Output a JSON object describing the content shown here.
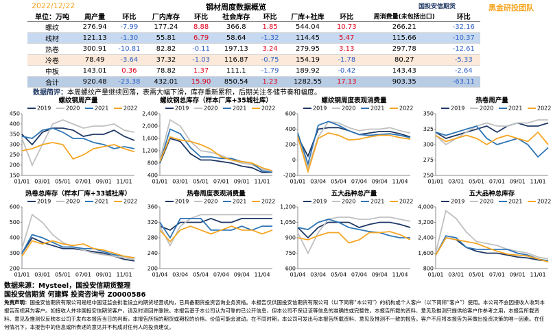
{
  "header": {
    "date": "2022/12/22",
    "title": "钢材周度数据概览",
    "logo": "国投安信期货",
    "team": "黑金研投团队"
  },
  "table": {
    "columns": [
      "单位：万吨",
      "周产量",
      "环比",
      "厂内库存",
      "环比",
      "社会库存",
      "环比",
      "厂库+社库",
      "环比",
      "周消费量(未包括出口)",
      "环比"
    ],
    "rows": [
      [
        "螺纹",
        "276.94",
        "-7.99",
        "177.24",
        "8.88",
        "366.8",
        "1.85",
        "544.04",
        "10.73",
        "266.21",
        "-32.16"
      ],
      [
        "线材",
        "121.13",
        "-1.30",
        "55.81",
        "6.79",
        "58.64",
        "-1.32",
        "114.45",
        "5.47",
        "115.66",
        "-10.37"
      ],
      [
        "热卷",
        "300.91",
        "-10.81",
        "82.82",
        "-0.11",
        "197.13",
        "3.24",
        "279.95",
        "3.13",
        "297.78",
        "-12.61"
      ],
      [
        "冷卷",
        "78.49",
        "-3.64",
        "37.32",
        "-1.03",
        "116.87",
        "-0.75",
        "154.19",
        "-1.78",
        "80.27",
        "-5.33"
      ],
      [
        "中板",
        "143.01",
        "0.36",
        "78.82",
        "1.37",
        "111.1",
        "-1.79",
        "189.92",
        "-0.42",
        "143.43",
        "-2.64"
      ],
      [
        "合计",
        "920.48",
        "-23.38",
        "432.01",
        "15.90",
        "850.54",
        "1.23",
        "1282.55",
        "17.13",
        "903.35",
        "-63.11"
      ]
    ],
    "row_colors": [
      "#ffffff",
      "#c6d9f0",
      "#ffffff",
      "#fde9d9",
      "#ffffff",
      "#b8cce4"
    ]
  },
  "comment": {
    "label": "数据简评：",
    "text": "本周螺纹产量继续回落，表需大幅下滑，库存重新累积，后期关注冬储节奏和幅度。"
  },
  "chart_data": [
    {
      "type": "line",
      "title": "螺纹钢周产量",
      "categories": [
        "01/01",
        null,
        "03/01",
        null,
        "05/01",
        null,
        "07/01",
        null,
        "09/01",
        null,
        "11/01",
        null
      ],
      "ylim": [
        150,
        450
      ],
      "yticks": [
        150,
        200,
        250,
        300,
        350,
        400,
        450
      ],
      "series": [
        {
          "name": "2019",
          "color": "#1f3864",
          "values": [
            350,
            300,
            360,
            380,
            380,
            370,
            340,
            350,
            350,
            370,
            340,
            320
          ]
        },
        {
          "name": "2020",
          "color": "#c0c0c0",
          "values": [
            330,
            200,
            300,
            400,
            420,
            400,
            380,
            390,
            390,
            400,
            370,
            360
          ]
        },
        {
          "name": "2021",
          "color": "#2e75b6",
          "values": [
            340,
            330,
            370,
            380,
            360,
            330,
            330,
            310,
            300,
            280,
            290,
            280
          ]
        },
        {
          "name": "2022",
          "color": "#f5a623",
          "values": [
            270,
            280,
            300,
            310,
            300,
            230,
            250,
            280,
            290,
            300,
            280,
            265
          ]
        }
      ]
    },
    {
      "type": "line",
      "title": "螺纹钢总库存（样本厂库+35城社库）",
      "categories": [
        "01/01",
        null,
        "03/01",
        null,
        "05/01",
        null,
        "07/01",
        null,
        "09/01",
        null,
        "11/01",
        null
      ],
      "ylim": [
        400,
        2400
      ],
      "yticks": [
        400,
        800,
        {
          "value": 1200,
          "label": "1,200"
        },
        {
          "value": 1600,
          "label": "1,600"
        },
        {
          "value": 2000,
          "label": "2,000"
        },
        {
          "value": 2400,
          "label": "2,400"
        }
      ],
      "series": [
        {
          "name": "2019",
          "color": "#1f3864",
          "values": [
            800,
            1600,
            1500,
            1100,
            900,
            900,
            850,
            800,
            700,
            650,
            500,
            500
          ]
        },
        {
          "name": "2020",
          "color": "#c0c0c0",
          "values": [
            900,
            2200,
            2000,
            1500,
            1200,
            1150,
            1050,
            900,
            800,
            750,
            600,
            550
          ]
        },
        {
          "name": "2021",
          "color": "#2e75b6",
          "values": [
            800,
            1900,
            1750,
            1300,
            1000,
            1000,
            950,
            950,
            850,
            800,
            550,
            500
          ]
        },
        {
          "name": "2022",
          "color": "#f5a623",
          "values": [
            850,
            1650,
            1550,
            1500,
            1400,
            1250,
            1000,
            900,
            850,
            800,
            650,
            550
          ]
        }
      ]
    },
    {
      "type": "line",
      "title": "螺纹钢周度表观消费量",
      "categories": [
        "01/01",
        null,
        "03/04",
        null,
        "05/04",
        null,
        "07/04",
        null,
        "09/04",
        null,
        "11/04",
        null
      ],
      "ylim": [
        -200,
        600
      ],
      "yticks": [
        -200,
        0,
        200,
        400,
        600
      ],
      "series": [
        {
          "name": "2019",
          "color": "#1f3864",
          "values": [
            300,
            50,
            400,
            420,
            420,
            380,
            330,
            350,
            370,
            370,
            340,
            300
          ]
        },
        {
          "name": "2020",
          "color": "#c0c0c0",
          "values": [
            300,
            -100,
            300,
            500,
            480,
            420,
            380,
            400,
            400,
            420,
            380,
            350
          ]
        },
        {
          "name": "2021",
          "color": "#2e75b6",
          "values": [
            350,
            -50,
            450,
            500,
            450,
            380,
            330,
            320,
            330,
            340,
            320,
            290
          ]
        },
        {
          "name": "2022",
          "color": "#f5a623",
          "values": [
            300,
            -150,
            280,
            350,
            320,
            260,
            270,
            300,
            320,
            320,
            290,
            270
          ]
        }
      ]
    },
    {
      "type": "line",
      "title": "热卷周产量",
      "categories": [
        "01/01",
        null,
        "03/01",
        null,
        "05/01",
        null,
        "07/01",
        null,
        "09/01",
        null,
        "11/01",
        null
      ],
      "ylim": [
        250,
        350
      ],
      "yticks": [
        250,
        275,
        300,
        325,
        350
      ],
      "series": [
        {
          "name": "2019",
          "color": "#1f3864",
          "values": [
            320,
            310,
            315,
            320,
            325,
            330,
            320,
            330,
            335,
            330,
            330,
            335
          ]
        },
        {
          "name": "2020",
          "color": "#c0c0c0",
          "values": [
            315,
            300,
            310,
            320,
            330,
            335,
            330,
            330,
            335,
            335,
            340,
            340
          ]
        },
        {
          "name": "2021",
          "color": "#2e75b6",
          "values": [
            320,
            315,
            320,
            325,
            330,
            310,
            300,
            305,
            310,
            300,
            280,
            295
          ]
        },
        {
          "name": "2022",
          "color": "#f5a623",
          "values": [
            315,
            305,
            310,
            315,
            310,
            300,
            310,
            315,
            310,
            305,
            320,
            300
          ]
        }
      ]
    },
    {
      "type": "line",
      "title": "热卷总库存（样本厂库+33城社库）",
      "categories": [
        "01/01",
        null,
        "03/01",
        null,
        "05/01",
        null,
        "07/01",
        null,
        "09/01",
        null,
        "11/01",
        null
      ],
      "ylim": [
        200,
        600
      ],
      "yticks": [
        200,
        300,
        400,
        500,
        600
      ],
      "series": [
        {
          "name": "2019",
          "color": "#1f3864",
          "values": [
            300,
            400,
            370,
            350,
            330,
            330,
            320,
            310,
            300,
            280,
            260,
            250
          ]
        },
        {
          "name": "2020",
          "color": "#c0c0c0",
          "values": [
            330,
            550,
            500,
            420,
            370,
            340,
            320,
            300,
            290,
            280,
            270,
            260
          ]
        },
        {
          "name": "2021",
          "color": "#2e75b6",
          "values": [
            300,
            420,
            400,
            370,
            340,
            340,
            330,
            330,
            310,
            290,
            280,
            270
          ]
        },
        {
          "name": "2022",
          "color": "#f5a623",
          "values": [
            280,
            380,
            360,
            380,
            360,
            350,
            360,
            330,
            320,
            300,
            280,
            270
          ]
        }
      ]
    },
    {
      "type": "line",
      "title": "热卷周度表观消费量",
      "categories": [
        "01/04",
        null,
        "03/04",
        null,
        "05/04",
        null,
        "07/04",
        null,
        "09/04",
        null,
        "11/04",
        null
      ],
      "ylim": [
        200,
        360
      ],
      "yticks": [
        200,
        240,
        280,
        320,
        360
      ],
      "series": [
        {
          "name": "2019",
          "color": "#1f3864",
          "values": [
            310,
            300,
            320,
            320,
            320,
            330,
            320,
            320,
            330,
            330,
            330,
            330
          ]
        },
        {
          "name": "2020",
          "color": "#c0c0c0",
          "values": [
            310,
            260,
            310,
            330,
            340,
            340,
            340,
            340,
            340,
            340,
            340,
            340
          ]
        },
        {
          "name": "2021",
          "color": "#2e75b6",
          "values": [
            320,
            280,
            330,
            330,
            330,
            300,
            300,
            300,
            310,
            300,
            310,
            310
          ]
        },
        {
          "name": "2022",
          "color": "#f5a623",
          "values": [
            300,
            270,
            300,
            310,
            300,
            290,
            300,
            310,
            300,
            300,
            290,
            300
          ]
        }
      ]
    },
    {
      "type": "line",
      "title": "五大品种总产量",
      "categories": [
        "01/04",
        null,
        "03/04",
        null,
        "05/04",
        null,
        "07/04",
        null,
        "09/04",
        null,
        "11/04",
        null
      ],
      "ylim": [
        600,
        1200
      ],
      "yticks": [
        600,
        750,
        900,
        {
          "value": 1050,
          "label": "1,050"
        },
        {
          "value": 1200,
          "label": "1,200"
        }
      ],
      "series": [
        {
          "name": "2019",
          "color": "#1f3864",
          "values": [
            1000,
            900,
            1000,
            1050,
            1050,
            1050,
            1000,
            1030,
            1050,
            1050,
            1030,
            1000
          ]
        },
        {
          "name": "2020",
          "color": "#c0c0c0",
          "values": [
            950,
            750,
            950,
            1080,
            1100,
            1100,
            1080,
            1080,
            1100,
            1100,
            1080,
            1060
          ]
        },
        {
          "name": "2021",
          "color": "#2e75b6",
          "values": [
            1000,
            980,
            1050,
            1080,
            1050,
            1000,
            980,
            960,
            950,
            920,
            900,
            900
          ]
        },
        {
          "name": "2022",
          "color": "#f5a623",
          "values": [
            900,
            880,
            920,
            950,
            950,
            850,
            880,
            950,
            950,
            960,
            930,
            880
          ]
        }
      ]
    },
    {
      "type": "line",
      "title": "五大品种总库存",
      "categories": [
        "01/01",
        null,
        "03/01",
        null,
        "05/01",
        null,
        "07/01",
        null,
        "09/01",
        null,
        "11/01",
        null
      ],
      "ylim": [
        800,
        4000
      ],
      "yticks": [
        800,
        {
          "value": 1600,
          "label": "1,600"
        },
        {
          "value": 2400,
          "label": "2,400"
        },
        {
          "value": 3200,
          "label": "3,200"
        },
        {
          "value": 4000,
          "label": "4,000"
        }
      ],
      "series": [
        {
          "name": "2019",
          "color": "#1f3864",
          "values": [
            1500,
            2400,
            2300,
            1900,
            1700,
            1600,
            1600,
            1500,
            1400,
            1350,
            1250,
            1200
          ]
        },
        {
          "name": "2020",
          "color": "#c0c0c0",
          "values": [
            1600,
            3800,
            3400,
            2700,
            2200,
            2100,
            2000,
            1800,
            1700,
            1600,
            1400,
            1300
          ]
        },
        {
          "name": "2021",
          "color": "#2e75b6",
          "values": [
            1500,
            2500,
            2400,
            1900,
            1800,
            1800,
            1800,
            1800,
            1600,
            1500,
            1300,
            1200
          ]
        },
        {
          "name": "2022",
          "color": "#f5a623",
          "values": [
            1500,
            2400,
            2300,
            2200,
            2100,
            1900,
            1700,
            1550,
            1500,
            1450,
            1300,
            1150
          ]
        }
      ]
    }
  ],
  "footer": {
    "source": "数据来源：Mysteel，国投安信期货整理",
    "author": "国投安信期货  何建辉  投资咨询号 Z0000586",
    "disclaimer_label": "免责声明：",
    "disclaimer": "国投安信期货有限公司是经中国证监会批准设立的期货经营机构，已具备期货投资咨询业务资格。本报告仅供国投安信期货有限公司（以下简称“本公司”）的机构或个人客户（以下简称“客户”）使用。本公司不会因接收人收到本报告而视其为客户。如接收人并非国投安信期货客户，请及时退回并删除。本报告基于本公司认为可靠的已公开信息，但本公司不保证该等信息的准确性或完整性。本报告所载的资料、意见及推测只提供给客户作参考之用，本报告所载资料、意见及推测仅反映本公司于发布本报告当日的判断，本报告所指的期货或期权的价格、价值可能会波动。在不同时期，本公司可发出与本报告所载资料、意见及推测不一致的报告。客户不应将本报告为其做出投资决策的唯一因素。在任何情况下，本报告中的信息或所表述的意见并不构成对任何人的投资建议。"
  }
}
